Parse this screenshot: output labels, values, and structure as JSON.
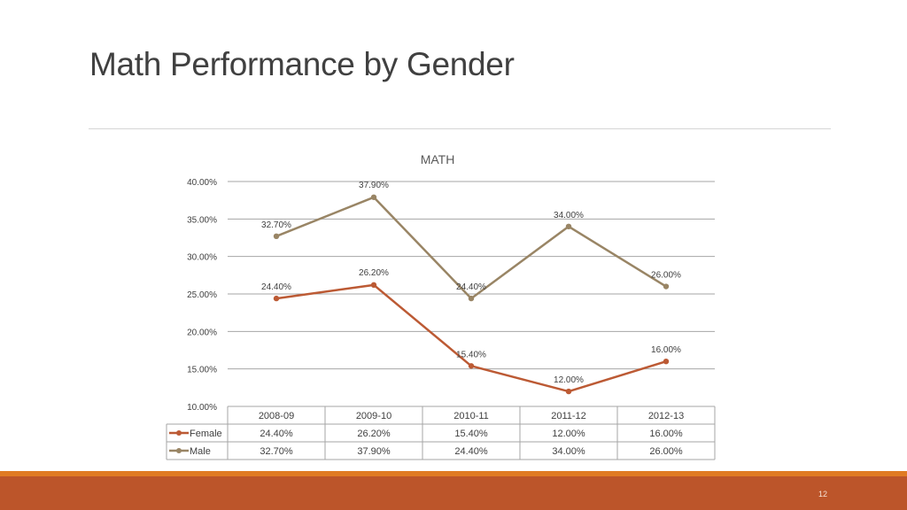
{
  "slide": {
    "title": "Math Performance by Gender",
    "page_number": "12"
  },
  "colors": {
    "female": "#bc5a34",
    "male": "#998565",
    "grid": "#a6a6a6",
    "footer_bar": "#bc552a",
    "footer_accent": "#e07b24"
  },
  "chart_data": {
    "type": "line",
    "title": "MATH",
    "categories": [
      "2008-09",
      "2009-10",
      "2010-11",
      "2011-12",
      "2012-13"
    ],
    "ylim": [
      0.1,
      0.4
    ],
    "yticks": [
      0.4,
      0.35,
      0.3,
      0.25,
      0.2,
      0.15,
      0.1
    ],
    "ytick_labels": [
      "40.00%",
      "35.00%",
      "30.00%",
      "25.00%",
      "20.00%",
      "15.00%",
      "10.00%"
    ],
    "grid": true,
    "legend": "data-table",
    "series": [
      {
        "name": "Female",
        "values": [
          0.244,
          0.262,
          0.154,
          0.12,
          0.16
        ],
        "labels": [
          "24.40%",
          "26.20%",
          "15.40%",
          "12.00%",
          "16.00%"
        ]
      },
      {
        "name": "Male",
        "values": [
          0.327,
          0.379,
          0.244,
          0.34,
          0.26
        ],
        "labels": [
          "32.70%",
          "37.90%",
          "24.40%",
          "34.00%",
          "26.00%"
        ]
      }
    ]
  }
}
